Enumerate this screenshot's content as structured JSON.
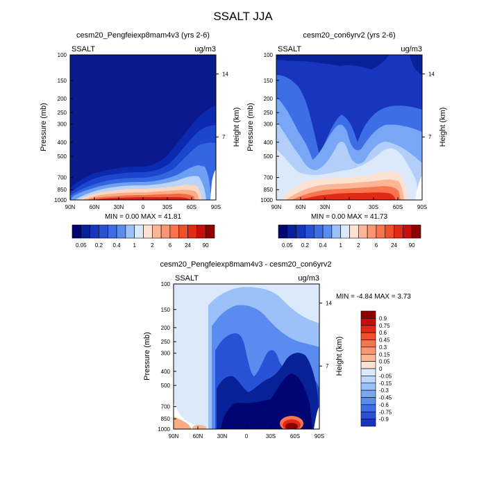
{
  "page_title": "SSALT JJA",
  "colors": {
    "pos": [
      "#ffe9dc",
      "#fdd0b6",
      "#fcb595",
      "#fb9672",
      "#f8754f",
      "#f04f2b",
      "#e02a16",
      "#c80d0d",
      "#8e0000"
    ],
    "neg": [
      "#dbe9fb",
      "#bed6fb",
      "#9cc1f9",
      "#79a7f6",
      "#5a8cef",
      "#3e6ee5",
      "#2851d6",
      "#1735bd",
      "#082198",
      "#00106e",
      "#000573"
    ]
  },
  "panels": [
    {
      "title": "cesm20_Pengfeiexp8mam4v3 (yrs 2-6)",
      "variable": "SSALT",
      "units": "ug/m3",
      "ylabel": "Pressure (mb)",
      "y2label": "Height (km)",
      "minmax": "MIN =   0.00  MAX =  41.81"
    },
    {
      "title": "cesm20_con6yrv2 (yrs 2-6)",
      "variable": "SSALT",
      "units": "ug/m3",
      "ylabel": "Pressure (mb)",
      "y2label": "Height (km)",
      "minmax": "MIN =   0.00  MAX =  41.73"
    },
    {
      "title": "cesm20_Pengfeiexp8mam4v3 - cesm20_con6yrv2",
      "variable": "SSALT",
      "units": "ug/m3",
      "ylabel": "Pressure (mb)",
      "y2label": "Height (km)",
      "minmax": "MIN =  -4.84  MAX =   3.73"
    }
  ],
  "chart_data": [
    {
      "type": "heatmap",
      "title": "cesm20_Pengfeiexp8mam4v3 (yrs 2-6)",
      "ylabel": "Pressure (mb)",
      "y2label": "Height (km)",
      "x_ticks": [
        "90N",
        "60N",
        "30N",
        "0",
        "30S",
        "60S",
        "90S"
      ],
      "y_ticks": [
        "100",
        "150",
        "200",
        "250",
        "300",
        "400",
        "500",
        "700",
        "850",
        "1000"
      ],
      "y2_ticks": [
        "14",
        "7"
      ],
      "ylim": [
        1000,
        100
      ],
      "min": 0.0,
      "max": 41.81,
      "colorbar_labels": [
        "0.05",
        "0.2",
        "0.4",
        "1",
        "2",
        "6",
        "24",
        "90"
      ]
    },
    {
      "type": "heatmap",
      "title": "cesm20_con6yrv2 (yrs 2-6)",
      "ylabel": "Pressure (mb)",
      "y2label": "Height (km)",
      "x_ticks": [
        "90N",
        "60N",
        "30N",
        "0",
        "30S",
        "60S",
        "90S"
      ],
      "y_ticks": [
        "100",
        "150",
        "200",
        "250",
        "300",
        "400",
        "500",
        "700",
        "850",
        "1000"
      ],
      "y2_ticks": [
        "14",
        "7"
      ],
      "ylim": [
        1000,
        100
      ],
      "min": 0.0,
      "max": 41.73,
      "colorbar_labels": [
        "0.05",
        "0.2",
        "0.4",
        "1",
        "2",
        "6",
        "24",
        "90"
      ]
    },
    {
      "type": "heatmap",
      "title": "cesm20_Pengfeiexp8mam4v3 - cesm20_con6yrv2",
      "ylabel": "Pressure (mb)",
      "y2label": "Height (km)",
      "x_ticks": [
        "90N",
        "60N",
        "30N",
        "0",
        "30S",
        "60S",
        "90S"
      ],
      "y_ticks": [
        "100",
        "150",
        "200",
        "250",
        "300",
        "400",
        "500",
        "700",
        "850",
        "1000"
      ],
      "y2_ticks": [
        "14",
        "7"
      ],
      "ylim": [
        1000,
        100
      ],
      "min": -4.84,
      "max": 3.73,
      "colorbar_labels": [
        "0.9",
        "0.75",
        "0.6",
        "0.45",
        "0.3",
        "0.15",
        "0.05",
        "0",
        "-0.05",
        "-0.15",
        "-0.3",
        "-0.45",
        "-0.6",
        "-0.75",
        "-0.9"
      ]
    }
  ]
}
